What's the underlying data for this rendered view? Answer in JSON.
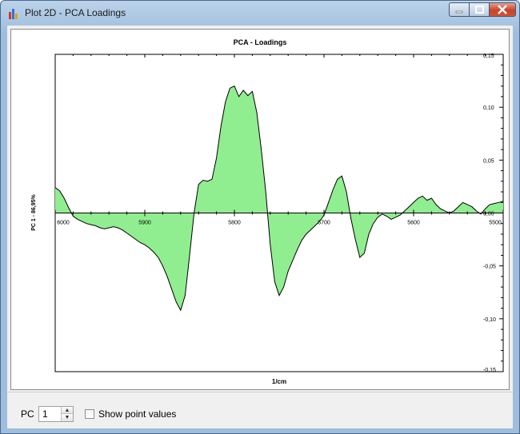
{
  "window": {
    "title": "Plot 2D - PCA Loadings"
  },
  "controls": {
    "pc_label": "PC",
    "pc_value": "1",
    "show_points_label": "Show point values",
    "show_points_checked": false
  },
  "colors": {
    "fill": "#90ee90",
    "line": "#000000",
    "accent": "#c7442a"
  },
  "chart_data": {
    "type": "area",
    "title": "PCA - Loadings",
    "xlabel": "1/cm",
    "ylabel": "PC 1 - 86,95%",
    "xlim": [
      6000,
      5500
    ],
    "ylim": [
      -0.15,
      0.15
    ],
    "x_reversed": true,
    "x_ticks": [
      "6000",
      "5900",
      "5800",
      "5700",
      "5600",
      "5500"
    ],
    "y_ticks": [
      "0,15",
      "0,10",
      "0,05",
      "0,00",
      "-0,05",
      "-0,10",
      "-0,15"
    ],
    "series": [
      {
        "x": [
          6000,
          5995,
          5990,
          5985,
          5980,
          5975,
          5970,
          5965,
          5960,
          5955,
          5950,
          5945,
          5940,
          5935,
          5930,
          5925,
          5920,
          5915,
          5910,
          5905,
          5900,
          5895,
          5890,
          5885,
          5880,
          5875,
          5870,
          5865,
          5860,
          5855,
          5850,
          5845,
          5840,
          5835,
          5830,
          5825,
          5820,
          5815,
          5810,
          5805,
          5800,
          5795,
          5790,
          5785,
          5780,
          5775,
          5770,
          5765,
          5760,
          5755,
          5750,
          5745,
          5740,
          5735,
          5730,
          5725,
          5720,
          5715,
          5710,
          5705,
          5700,
          5695,
          5690,
          5685,
          5680,
          5675,
          5670,
          5665,
          5660,
          5655,
          5650,
          5645,
          5640,
          5635,
          5630,
          5625,
          5620,
          5615,
          5610,
          5605,
          5600,
          5595,
          5590,
          5585,
          5580,
          5575,
          5570,
          5565,
          5560,
          5555,
          5550,
          5545,
          5540,
          5535,
          5530,
          5525,
          5520,
          5515,
          5510,
          5505,
          5500
        ],
        "y": [
          0.024,
          0.021,
          0.014,
          0.005,
          -0.003,
          -0.006,
          -0.008,
          -0.01,
          -0.011,
          -0.012,
          -0.014,
          -0.015,
          -0.014,
          -0.013,
          -0.014,
          -0.016,
          -0.019,
          -0.022,
          -0.025,
          -0.028,
          -0.03,
          -0.033,
          -0.037,
          -0.042,
          -0.05,
          -0.06,
          -0.072,
          -0.084,
          -0.092,
          -0.078,
          -0.04,
          0.0,
          0.027,
          0.031,
          0.03,
          0.032,
          0.052,
          0.082,
          0.105,
          0.118,
          0.12,
          0.11,
          0.116,
          0.111,
          0.115,
          0.095,
          0.06,
          0.02,
          -0.03,
          -0.065,
          -0.078,
          -0.07,
          -0.055,
          -0.045,
          -0.035,
          -0.026,
          -0.02,
          -0.016,
          -0.012,
          -0.008,
          -0.002,
          0.01,
          0.022,
          0.032,
          0.035,
          0.02,
          -0.005,
          -0.025,
          -0.042,
          -0.038,
          -0.02,
          -0.01,
          -0.004,
          -0.001,
          -0.003,
          -0.006,
          -0.004,
          -0.002,
          0.002,
          0.006,
          0.01,
          0.014,
          0.016,
          0.012,
          0.014,
          0.008,
          0.004,
          0.002,
          0.0,
          0.002,
          0.006,
          0.01,
          0.008,
          0.006,
          0.002,
          -0.001,
          0.004,
          0.008,
          0.009,
          0.01,
          0.011
        ]
      }
    ]
  }
}
